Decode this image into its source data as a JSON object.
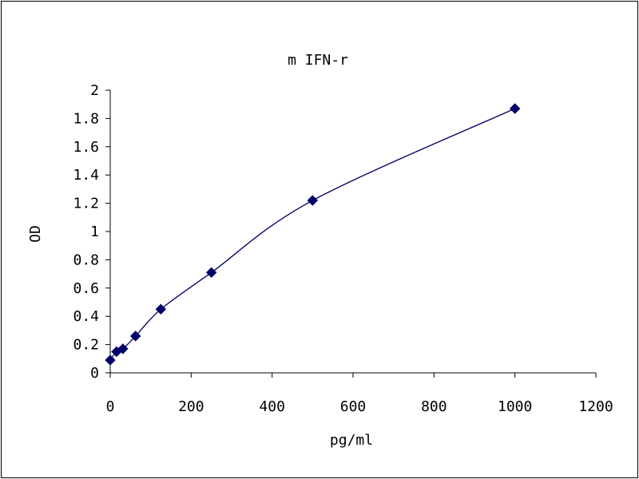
{
  "chart_data": {
    "type": "scatter",
    "title": "m IFN-r",
    "xlabel": "pg/ml",
    "ylabel": "OD",
    "xlim": [
      0,
      1200
    ],
    "ylim": [
      0,
      2
    ],
    "x_ticks": [
      "0",
      "200",
      "400",
      "600",
      "800",
      "1000",
      "1200"
    ],
    "y_ticks": [
      "0",
      "0.2",
      "0.4",
      "0.6",
      "0.8",
      "1",
      "1.2",
      "1.4",
      "1.6",
      "1.8",
      "2"
    ],
    "grid": false,
    "legend": false,
    "series": [
      {
        "x": [
          0,
          15.6,
          31.25,
          62.5,
          125,
          250,
          500,
          1000
        ],
        "y": [
          0.09,
          0.15,
          0.17,
          0.26,
          0.45,
          0.71,
          1.22,
          1.87
        ],
        "marker": "diamond",
        "line": "smooth",
        "color": "#000066"
      }
    ]
  }
}
